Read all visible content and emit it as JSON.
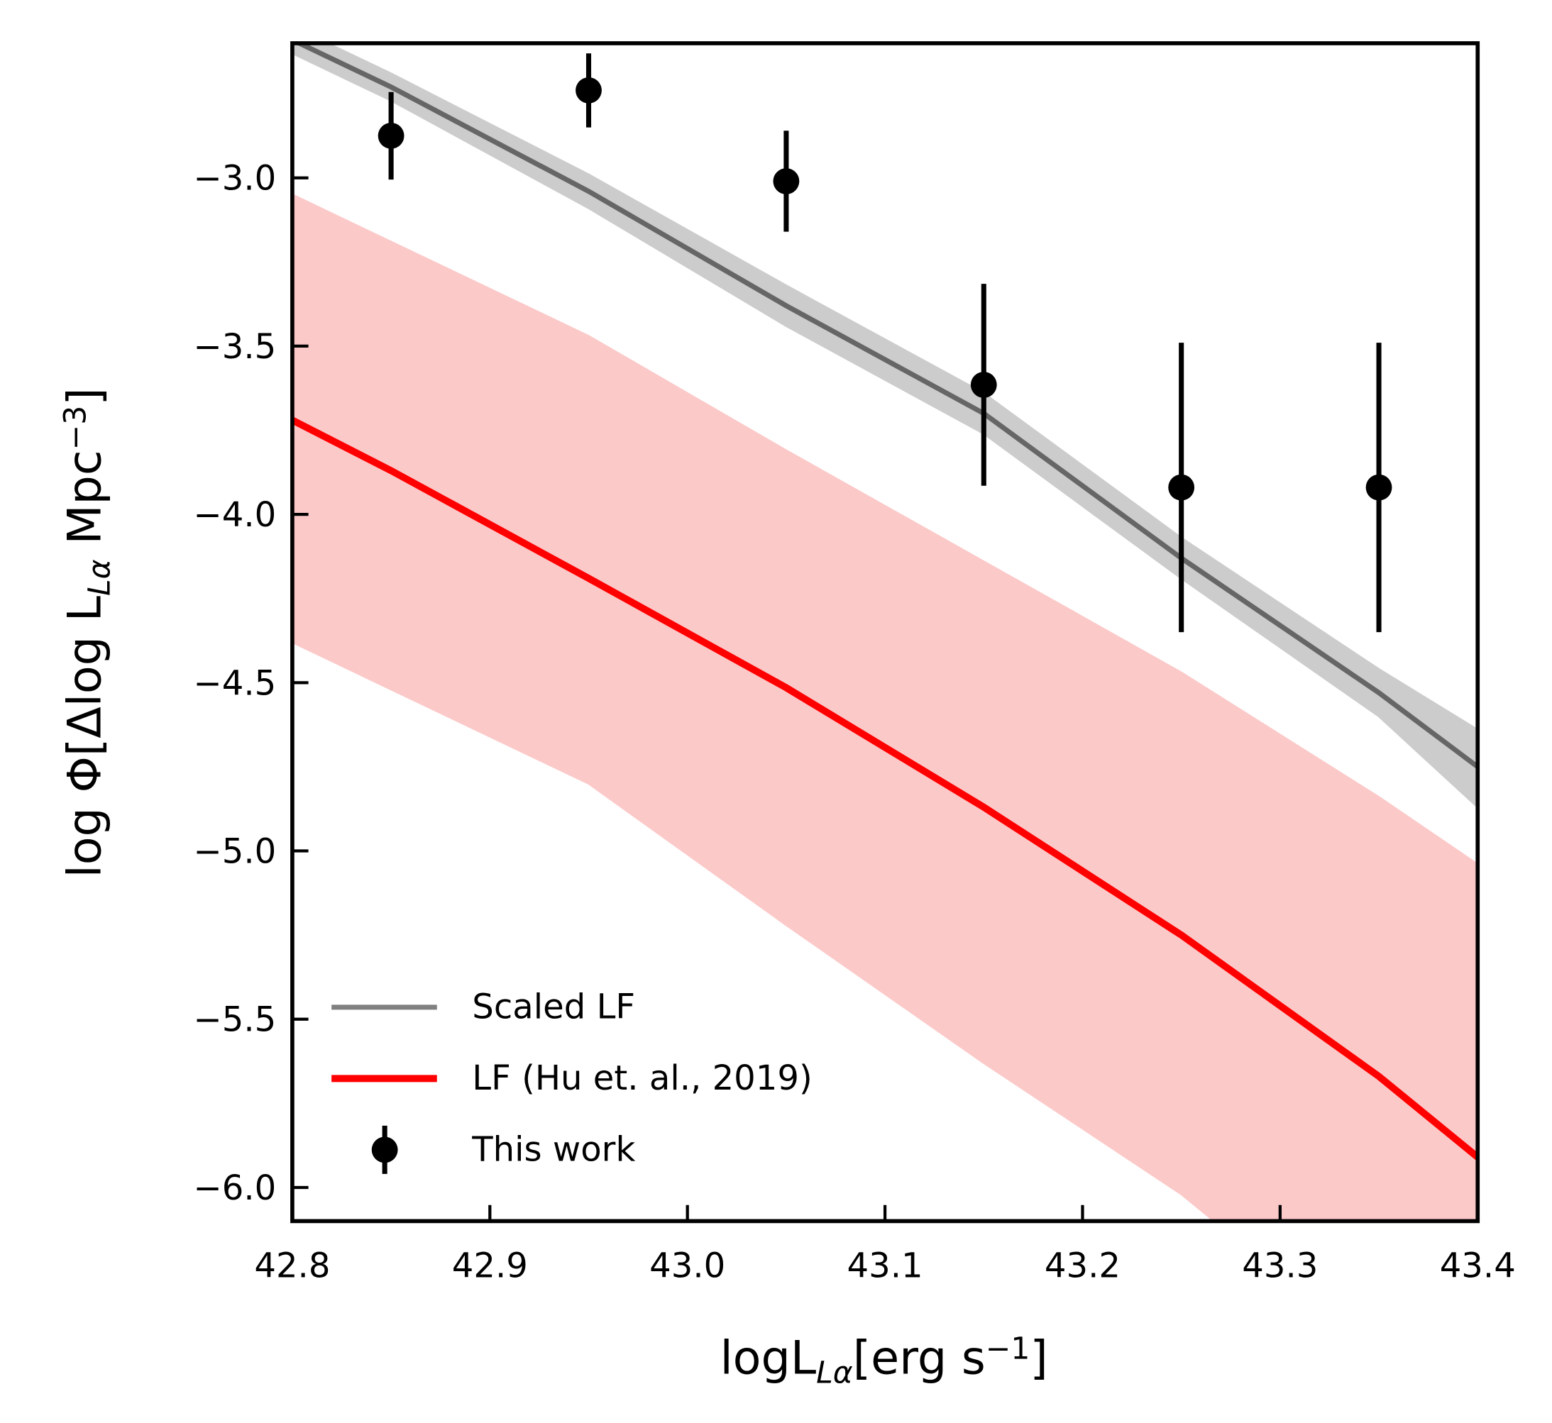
{
  "chart_data": {
    "type": "line",
    "xlabel": [
      "logL",
      "Lα",
      "[erg s",
      "−1",
      "]"
    ],
    "ylabel": [
      "log Φ[Δlog  L",
      "Lα",
      " Mpc",
      "−3",
      "]"
    ],
    "xlim": [
      42.8,
      43.4
    ],
    "ylim": [
      -6.1,
      -2.6
    ],
    "xticks": [
      {
        "value": 42.8,
        "label": "42.8"
      },
      {
        "value": 42.9,
        "label": "42.9"
      },
      {
        "value": 43.0,
        "label": "43.0"
      },
      {
        "value": 43.1,
        "label": "43.1"
      },
      {
        "value": 43.2,
        "label": "43.2"
      },
      {
        "value": 43.3,
        "label": "43.3"
      },
      {
        "value": 43.4,
        "label": "43.4"
      }
    ],
    "yticks": [
      {
        "value": -3.0,
        "label": "−3.0"
      },
      {
        "value": -3.5,
        "label": "−3.5"
      },
      {
        "value": -4.0,
        "label": "−4.0"
      },
      {
        "value": -4.5,
        "label": "−4.5"
      },
      {
        "value": -5.0,
        "label": "−5.0"
      },
      {
        "value": -5.5,
        "label": "−5.5"
      },
      {
        "value": -6.0,
        "label": "−6.0"
      }
    ],
    "legend": "lower left",
    "series": [
      {
        "name": "Scaled LF",
        "color": "#666666",
        "band_color": "#cccccc",
        "x": [
          42.8,
          42.85,
          42.95,
          43.05,
          43.15,
          43.25,
          43.35,
          43.4
        ],
        "values": [
          -2.59,
          -2.73,
          -3.04,
          -3.38,
          -3.7,
          -4.13,
          -4.53,
          -4.75
        ],
        "lower": [
          -2.63,
          -2.77,
          -3.09,
          -3.44,
          -3.76,
          -4.19,
          -4.6,
          -4.87
        ],
        "upper": [
          -2.55,
          -2.69,
          -2.99,
          -3.32,
          -3.64,
          -4.07,
          -4.46,
          -4.64
        ]
      },
      {
        "name": "LF (Hu et. al., 2019)",
        "color": "#ff0000",
        "band_color": "#fcc9c9",
        "x": [
          42.8,
          42.85,
          42.95,
          43.05,
          43.15,
          43.25,
          43.35,
          43.4
        ],
        "values": [
          -3.72,
          -3.87,
          -4.19,
          -4.515,
          -4.87,
          -5.25,
          -5.67,
          -5.91
        ],
        "lower": [
          -4.38,
          -4.52,
          -4.8,
          -5.22,
          -5.63,
          -6.02,
          -6.5,
          -6.7
        ],
        "upper": [
          -3.05,
          -3.19,
          -3.47,
          -3.81,
          -4.14,
          -4.47,
          -4.84,
          -5.04
        ]
      },
      {
        "name": "This work",
        "color": "#000000",
        "kind": "errorbar",
        "x": [
          42.85,
          42.95,
          43.05,
          43.15,
          43.25,
          43.35
        ],
        "values": [
          -2.875,
          -2.74,
          -3.01,
          -3.615,
          -3.92,
          -3.92
        ],
        "errors": [
          0.13,
          0.11,
          0.15,
          0.3,
          0.43,
          0.43
        ]
      }
    ]
  }
}
